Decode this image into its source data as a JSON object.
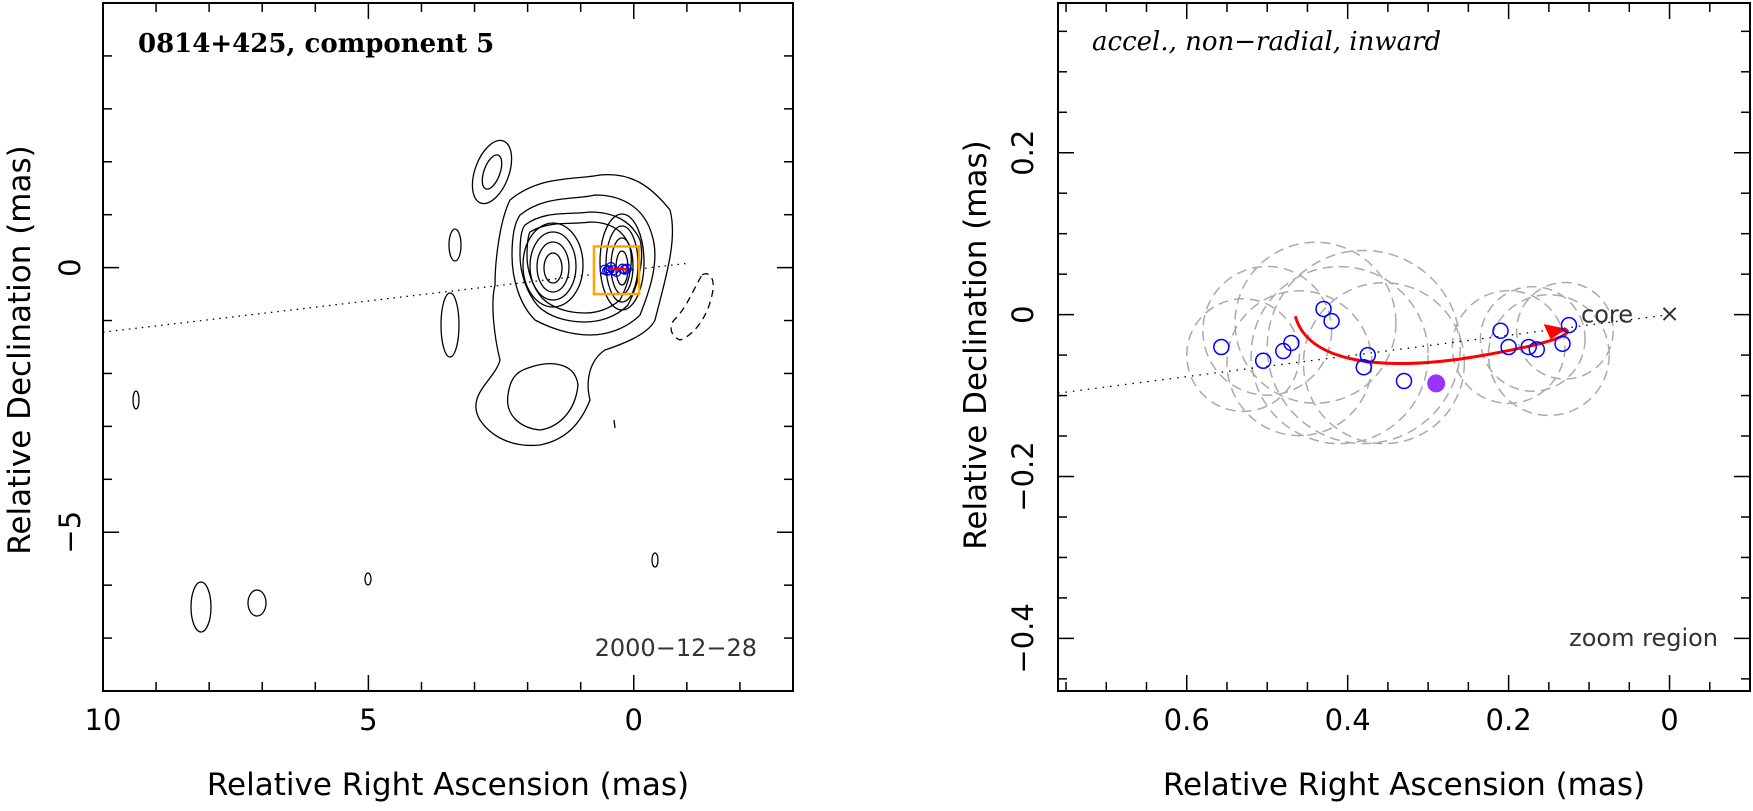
{
  "chart_data": [
    {
      "type": "scatter",
      "title": "0814+425, component 5",
      "xlabel": "Relative Right Ascension (mas)",
      "ylabel": "Relative Declination (mas)",
      "xlim": [
        10,
        -3
      ],
      "ylim": [
        -8,
        5
      ],
      "x_ticks": [
        "10",
        "5",
        "0"
      ],
      "y_ticks": [
        "0",
        "−5"
      ],
      "date_label": "2000−12−28",
      "jet_axis": [
        [
          10,
          -1.22
        ],
        [
          -1.0,
          0.08
        ]
      ],
      "zoom_box": {
        "x": [
          0.75,
          -0.1
        ],
        "y": [
          0.4,
          -0.5
        ]
      },
      "component_positions": [
        [
          0.55,
          -0.04
        ],
        [
          0.5,
          -0.06
        ],
        [
          0.47,
          -0.05
        ],
        [
          0.43,
          0.01
        ],
        [
          0.38,
          -0.05
        ],
        [
          0.33,
          -0.08
        ],
        [
          0.21,
          -0.02
        ],
        [
          0.17,
          -0.04
        ],
        [
          0.13,
          -0.02
        ]
      ],
      "colors": {
        "contour": "#000000",
        "zoom_box": "#FFA500",
        "component": "#0000FF",
        "track": "#FF0000"
      }
    },
    {
      "type": "scatter",
      "title": "accel., non−radial, inward",
      "xlabel": "Relative Right Ascension (mas)",
      "ylabel": "Relative Declination (mas)",
      "xlim": [
        0.76,
        -0.1
      ],
      "ylim": [
        -0.465,
        0.385
      ],
      "x_ticks": [
        "0.6",
        "0.4",
        "0.2",
        "0"
      ],
      "y_ticks": [
        "0.2",
        "0",
        "−0.2",
        "−0.4"
      ],
      "core_label": "core",
      "zoom_label": "zoom region",
      "series": [
        {
          "x": [
            0.557,
            0.505,
            0.48,
            0.47,
            0.43,
            0.42,
            0.38,
            0.375,
            0.33,
            0.21,
            0.2,
            0.175,
            0.165,
            0.133,
            0.125
          ],
          "y": [
            -0.04,
            -0.057,
            -0.045,
            -0.035,
            0.007,
            -0.008,
            -0.065,
            -0.05,
            -0.082,
            -0.02,
            -0.04,
            -0.04,
            -0.043,
            -0.036,
            -0.013
          ]
        }
      ],
      "mean_position": {
        "x": 0.29,
        "y": -0.085
      },
      "uncertainty_circles": [
        {
          "x": 0.53,
          "y": -0.05,
          "r": 0.07
        },
        {
          "x": 0.5,
          "y": -0.02,
          "r": 0.08
        },
        {
          "x": 0.46,
          "y": -0.06,
          "r": 0.09
        },
        {
          "x": 0.44,
          "y": -0.01,
          "r": 0.1
        },
        {
          "x": 0.41,
          "y": -0.05,
          "r": 0.11
        },
        {
          "x": 0.38,
          "y": -0.04,
          "r": 0.12
        },
        {
          "x": 0.355,
          "y": -0.06,
          "r": 0.1
        },
        {
          "x": 0.2,
          "y": -0.04,
          "r": 0.07
        },
        {
          "x": 0.17,
          "y": -0.03,
          "r": 0.065
        },
        {
          "x": 0.15,
          "y": -0.05,
          "r": 0.075
        },
        {
          "x": 0.13,
          "y": -0.02,
          "r": 0.06
        }
      ],
      "track": [
        [
          0.465,
          -0.002
        ],
        [
          0.45,
          -0.058
        ],
        [
          0.36,
          -0.073
        ],
        [
          0.23,
          -0.05
        ],
        [
          0.13,
          -0.018
        ]
      ],
      "jet_axis": [
        [
          0.76,
          -0.097
        ],
        [
          0.0,
          0.0
        ]
      ],
      "colors": {
        "component": "#0000FF",
        "mean": "#9933FF",
        "track": "#FF0000",
        "circles": "#AAAAAA"
      }
    }
  ]
}
